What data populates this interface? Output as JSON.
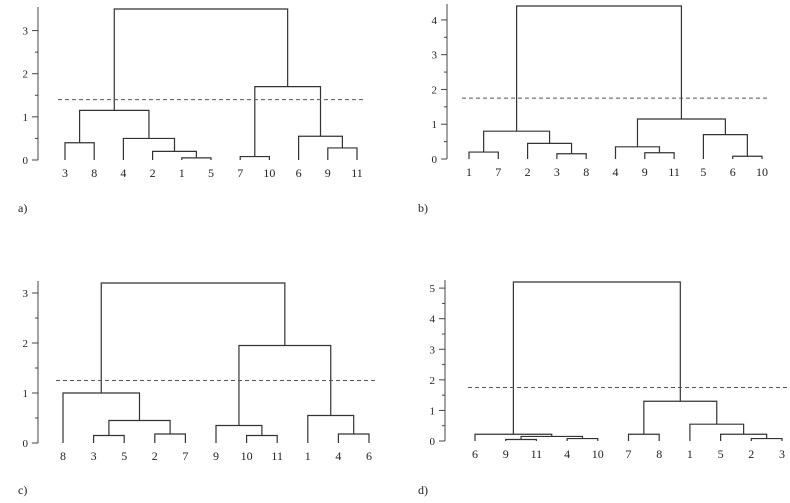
{
  "chart_data": [
    {
      "type": "dendrogram",
      "panel_label": "a)",
      "y_ticks": [
        0,
        1,
        2,
        3
      ],
      "ylim": [
        0,
        3.5
      ],
      "cut_height": 1.4,
      "leaf_order": [
        "3",
        "8",
        "4",
        "2",
        "1",
        "5",
        "7",
        "10",
        "6",
        "9",
        "11"
      ],
      "merges": [
        {
          "children": [
            "L:1",
            "L:5"
          ],
          "height": 0.05
        },
        {
          "children": [
            "L:2",
            "M:0"
          ],
          "height": 0.2
        },
        {
          "children": [
            "L:4",
            "M:1"
          ],
          "height": 0.5
        },
        {
          "children": [
            "L:3",
            "L:8"
          ],
          "height": 0.4
        },
        {
          "children": [
            "M:3",
            "M:2"
          ],
          "height": 1.15
        },
        {
          "children": [
            "L:7",
            "L:10"
          ],
          "height": 0.08
        },
        {
          "children": [
            "L:9",
            "L:11"
          ],
          "height": 0.28
        },
        {
          "children": [
            "L:6",
            "M:6"
          ],
          "height": 0.55
        },
        {
          "children": [
            "M:5",
            "M:7"
          ],
          "height": 1.7
        },
        {
          "children": [
            "M:4",
            "M:8"
          ],
          "height": 3.5
        }
      ]
    },
    {
      "type": "dendrogram",
      "panel_label": "b)",
      "y_ticks": [
        0,
        1,
        2,
        3,
        4
      ],
      "ylim": [
        0,
        4.4
      ],
      "cut_height": 1.75,
      "leaf_order": [
        "1",
        "7",
        "2",
        "3",
        "8",
        "4",
        "9",
        "11",
        "5",
        "6",
        "10"
      ],
      "merges": [
        {
          "children": [
            "L:1",
            "L:7"
          ],
          "height": 0.2
        },
        {
          "children": [
            "L:3",
            "L:8"
          ],
          "height": 0.15
        },
        {
          "children": [
            "L:2",
            "M:1"
          ],
          "height": 0.45
        },
        {
          "children": [
            "M:0",
            "M:2"
          ],
          "height": 0.8
        },
        {
          "children": [
            "L:9",
            "L:11"
          ],
          "height": 0.18
        },
        {
          "children": [
            "L:4",
            "M:4"
          ],
          "height": 0.35
        },
        {
          "children": [
            "L:6",
            "L:10"
          ],
          "height": 0.08
        },
        {
          "children": [
            "L:5",
            "M:6"
          ],
          "height": 0.7
        },
        {
          "children": [
            "M:5",
            "M:7"
          ],
          "height": 1.15
        },
        {
          "children": [
            "M:3",
            "M:8"
          ],
          "height": 4.4
        }
      ]
    },
    {
      "type": "dendrogram",
      "panel_label": "c)",
      "y_ticks": [
        0,
        1,
        2,
        3
      ],
      "ylim": [
        0,
        3.2
      ],
      "cut_height": 1.25,
      "leaf_order": [
        "8",
        "3",
        "5",
        "2",
        "7",
        "9",
        "10",
        "11",
        "1",
        "4",
        "6"
      ],
      "merges": [
        {
          "children": [
            "L:3",
            "L:5"
          ],
          "height": 0.15
        },
        {
          "children": [
            "L:2",
            "L:7"
          ],
          "height": 0.18
        },
        {
          "children": [
            "M:0",
            "M:1"
          ],
          "height": 0.45
        },
        {
          "children": [
            "L:8",
            "M:2"
          ],
          "height": 1.0
        },
        {
          "children": [
            "L:10",
            "L:11"
          ],
          "height": 0.15
        },
        {
          "children": [
            "L:9",
            "M:4"
          ],
          "height": 0.35
        },
        {
          "children": [
            "L:4",
            "L:6"
          ],
          "height": 0.18
        },
        {
          "children": [
            "L:1",
            "M:6"
          ],
          "height": 0.55
        },
        {
          "children": [
            "M:5",
            "M:7"
          ],
          "height": 1.95
        },
        {
          "children": [
            "M:3",
            "M:8"
          ],
          "height": 3.2
        }
      ]
    },
    {
      "type": "dendrogram",
      "panel_label": "d)",
      "y_ticks": [
        0,
        1,
        2,
        3,
        4,
        5
      ],
      "ylim": [
        0,
        5.2
      ],
      "cut_height": 1.75,
      "leaf_order": [
        "6",
        "9",
        "11",
        "4",
        "10",
        "7",
        "8",
        "1",
        "5",
        "2",
        "3"
      ],
      "merges": [
        {
          "children": [
            "L:9",
            "L:11"
          ],
          "height": 0.05
        },
        {
          "children": [
            "L:4",
            "L:10"
          ],
          "height": 0.08
        },
        {
          "children": [
            "M:0",
            "M:1"
          ],
          "height": 0.15
        },
        {
          "children": [
            "L:6",
            "M:2"
          ],
          "height": 0.22
        },
        {
          "children": [
            "L:7",
            "L:8"
          ],
          "height": 0.22
        },
        {
          "children": [
            "L:2",
            "L:3"
          ],
          "height": 0.08
        },
        {
          "children": [
            "L:5",
            "M:5"
          ],
          "height": 0.22
        },
        {
          "children": [
            "L:1",
            "M:6"
          ],
          "height": 0.55
        },
        {
          "children": [
            "M:4",
            "M:7"
          ],
          "height": 1.3
        },
        {
          "children": [
            "M:3",
            "M:8"
          ],
          "height": 5.2
        }
      ]
    }
  ]
}
